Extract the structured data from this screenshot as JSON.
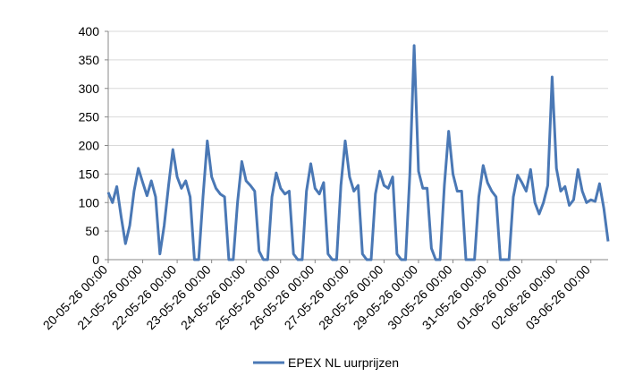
{
  "chart_data": {
    "type": "line",
    "x": [
      0,
      3,
      6,
      9,
      12,
      15,
      18,
      21,
      24,
      27,
      30,
      33,
      36,
      39,
      42,
      45,
      48,
      51,
      54,
      57,
      60,
      63,
      66,
      69,
      72,
      75,
      78,
      81,
      84,
      87,
      90,
      93,
      96,
      99,
      102,
      105,
      108,
      111,
      114,
      117,
      120,
      123,
      126,
      129,
      132,
      135,
      138,
      141,
      144,
      147,
      150,
      153,
      156,
      159,
      162,
      165,
      168,
      171,
      174,
      177,
      180,
      183,
      186,
      189,
      192,
      195,
      198,
      201,
      204,
      207,
      210,
      213,
      216,
      219,
      222,
      225,
      228,
      231,
      234,
      237,
      240,
      243,
      246,
      249,
      252,
      255,
      258,
      261,
      264,
      267,
      270,
      273,
      276,
      279,
      282,
      285,
      288,
      291,
      294,
      297,
      300,
      303,
      306,
      309,
      312,
      315,
      318,
      321,
      324,
      327,
      330,
      333,
      336,
      339,
      342,
      345,
      348
    ],
    "series": [
      {
        "name": "EPEX NL uurprijzen",
        "color": "#4a78b5",
        "values": [
          118,
          100,
          128,
          75,
          28,
          60,
          120,
          160,
          135,
          112,
          138,
          110,
          10,
          60,
          130,
          193,
          145,
          125,
          138,
          110,
          0,
          0,
          110,
          208,
          145,
          125,
          115,
          110,
          0,
          0,
          100,
          172,
          138,
          130,
          120,
          15,
          0,
          0,
          110,
          152,
          125,
          115,
          120,
          10,
          0,
          0,
          120,
          168,
          125,
          115,
          135,
          10,
          0,
          0,
          130,
          208,
          145,
          120,
          130,
          10,
          0,
          0,
          115,
          155,
          130,
          125,
          145,
          10,
          0,
          0,
          150,
          375,
          155,
          125,
          125,
          20,
          0,
          0,
          130,
          225,
          150,
          120,
          120,
          0,
          0,
          0,
          110,
          165,
          135,
          120,
          110,
          0,
          0,
          0,
          110,
          148,
          135,
          120,
          158,
          100,
          80,
          100,
          130,
          320,
          160,
          120,
          128,
          95,
          105,
          158,
          120,
          100,
          105,
          102,
          133,
          90,
          32
        ]
      }
    ],
    "xlim": [
      0,
      348
    ],
    "xticks": [
      {
        "value": 0,
        "label": "20-05-26 00:00"
      },
      {
        "value": 24,
        "label": "21-05-26 00:00"
      },
      {
        "value": 48,
        "label": "22-05-26 00:00"
      },
      {
        "value": 72,
        "label": "23-05-26 00:00"
      },
      {
        "value": 96,
        "label": "24-05-26 00:00"
      },
      {
        "value": 120,
        "label": "25-05-26 00:00"
      },
      {
        "value": 144,
        "label": "26-05-26 00:00"
      },
      {
        "value": 168,
        "label": "27-05-26 00:00"
      },
      {
        "value": 192,
        "label": "28-05-26 00:00"
      },
      {
        "value": 216,
        "label": "29-05-26 00:00"
      },
      {
        "value": 240,
        "label": "30-05-26 00:00"
      },
      {
        "value": 264,
        "label": "31-05-26 00:00"
      },
      {
        "value": 288,
        "label": "01-06-26 00:00"
      },
      {
        "value": 312,
        "label": "02-06-26 00:00"
      },
      {
        "value": 336,
        "label": "03-06-26 00:00"
      }
    ],
    "ylim": [
      0,
      400
    ],
    "yticks": [
      0,
      50,
      100,
      150,
      200,
      250,
      300,
      350,
      400
    ],
    "grid": true
  }
}
